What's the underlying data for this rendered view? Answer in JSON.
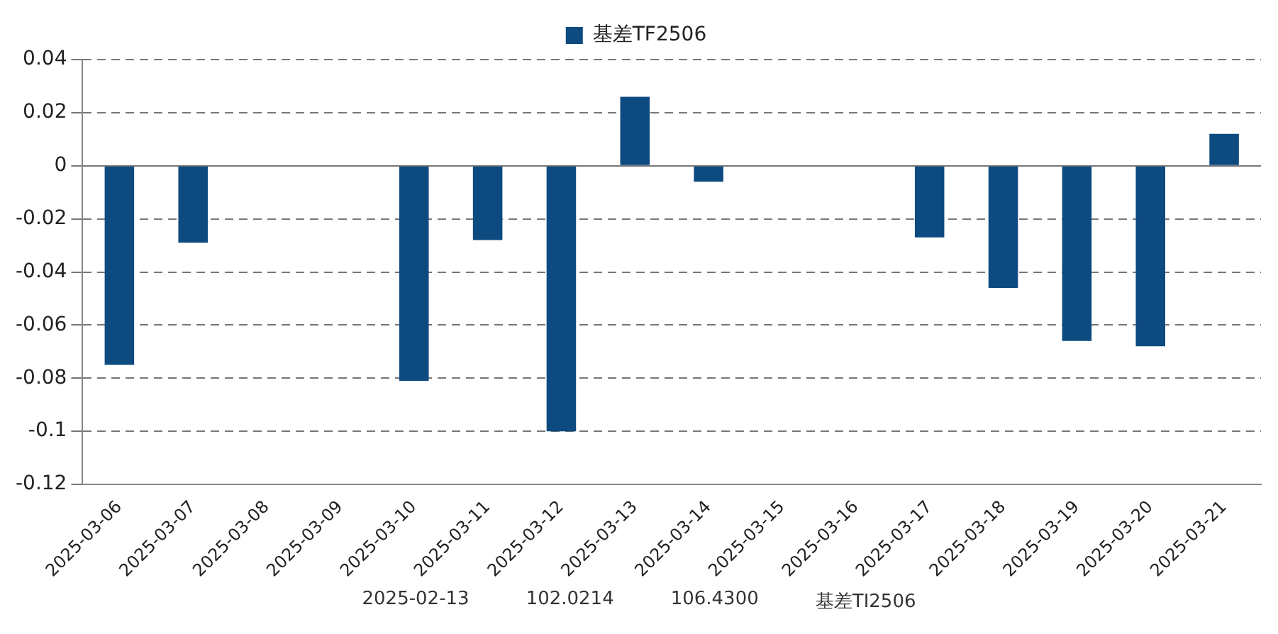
{
  "chart_data": {
    "type": "bar",
    "categories": [
      "2025-03-06",
      "2025-03-07",
      "2025-03-08",
      "2025-03-09",
      "2025-03-10",
      "2025-03-11",
      "2025-03-12",
      "2025-03-13",
      "2025-03-14",
      "2025-03-15",
      "2025-03-16",
      "2025-03-17",
      "2025-03-18",
      "2025-03-19",
      "2025-03-20",
      "2025-03-21"
    ],
    "series": [
      {
        "name": "基差TF2506",
        "color": "#0d4a80",
        "values": [
          -0.075,
          -0.029,
          null,
          null,
          -0.081,
          -0.028,
          -0.1,
          0.026,
          -0.006,
          null,
          null,
          -0.027,
          -0.046,
          -0.066,
          -0.068,
          0.012
        ]
      }
    ],
    "ylim": [
      -0.12,
      0.04
    ],
    "yticks": [
      -0.12,
      -0.1,
      -0.08,
      -0.06,
      -0.04,
      -0.02,
      0,
      0.02,
      0.04
    ],
    "grid": "y",
    "legend": "top",
    "annotations": [
      "2025-02-13",
      "102.0214",
      "106.4300",
      "基差TI2506"
    ]
  }
}
